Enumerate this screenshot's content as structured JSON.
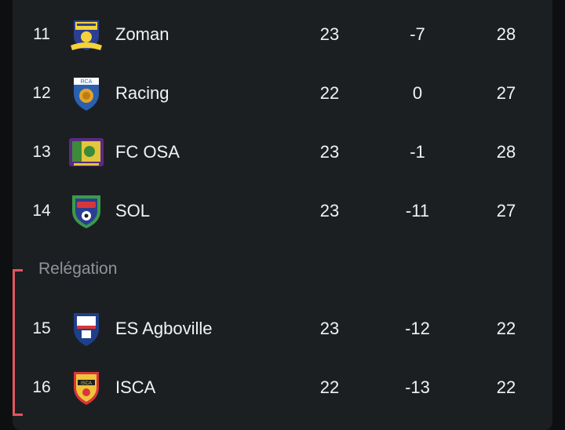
{
  "standings": [
    {
      "rank": "11",
      "team": "Zoman",
      "played": "23",
      "diff": "-7",
      "points": "28",
      "crest": "zoman-crest-icon"
    },
    {
      "rank": "12",
      "team": "Racing",
      "played": "22",
      "diff": "0",
      "points": "27",
      "crest": "racing-crest-icon"
    },
    {
      "rank": "13",
      "team": "FC OSA",
      "played": "23",
      "diff": "-1",
      "points": "28",
      "crest": "fc-osa-crest-icon"
    },
    {
      "rank": "14",
      "team": "SOL",
      "played": "23",
      "diff": "-11",
      "points": "27",
      "crest": "sol-crest-icon"
    }
  ],
  "relegation": {
    "label": "Relégation",
    "color": "#e0575d",
    "rows": [
      {
        "rank": "15",
        "team": "ES Agboville",
        "played": "23",
        "diff": "-12",
        "points": "22",
        "crest": "es-agboville-crest-icon"
      },
      {
        "rank": "16",
        "team": "ISCA",
        "played": "22",
        "diff": "-13",
        "points": "22",
        "crest": "isca-crest-icon"
      }
    ]
  },
  "colors": {
    "background": "#0d0f11",
    "panel": "#1c1f22",
    "text": "#f2f2f2",
    "muted": "#8f949a"
  }
}
